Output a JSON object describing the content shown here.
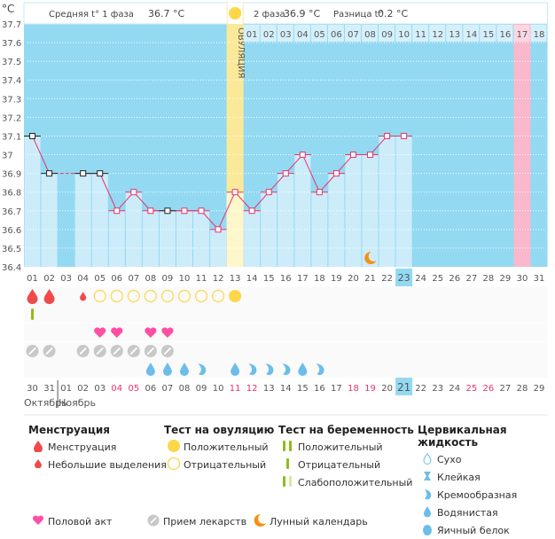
{
  "header": {
    "unit": "°C",
    "phase1_label": "Средняя t° 1 фаза",
    "phase1_value": "36.7 °C",
    "phase2_label": "2 фаза",
    "phase2_value": "36.9 °C",
    "diff_label": "Разница t°",
    "diff_value": "0.2 °C"
  },
  "colors": {
    "sky": "#93d9f2",
    "bar": "#cdecfa",
    "ovulation": "#fbe99a",
    "expected_period": "#f9b8cc",
    "line": "#e8336a",
    "menstruation": "#f04a4a",
    "ovulation_test": "#fcd74a",
    "pregnancy_test": "#8fbd1a",
    "heart": "#ff4fa3",
    "pill": "#c8c8c8",
    "fluid": "#6cbde9",
    "moon": "#f39215",
    "weekend": "#e8336a"
  },
  "chart_data": {
    "type": "line",
    "title": "",
    "ylabel": "°C",
    "ylim": [
      36.4,
      37.7
    ],
    "yticks": [
      37.7,
      37.6,
      37.5,
      37.4,
      37.3,
      37.2,
      37.1,
      37.0,
      36.9,
      36.8,
      36.7,
      36.6,
      36.5,
      36.4
    ],
    "ytick_labels": [
      "37.7",
      "37.6",
      "37.5",
      "37.4",
      "37.3",
      "37.2",
      "37.1",
      "37",
      "36.9",
      "36.8",
      "36.7",
      "36.6",
      "36.5",
      "36.4"
    ],
    "cycle_days": [
      "01",
      "02",
      "03",
      "04",
      "05",
      "06",
      "07",
      "08",
      "09",
      "10",
      "11",
      "12",
      "13",
      "14",
      "15",
      "16",
      "17",
      "18",
      "19",
      "20",
      "21",
      "22",
      "23",
      "24",
      "25",
      "26",
      "27",
      "28",
      "29",
      "30",
      "31"
    ],
    "temperatures": [
      37.1,
      36.9,
      null,
      36.9,
      36.9,
      36.7,
      36.8,
      36.7,
      36.7,
      36.7,
      36.7,
      36.6,
      36.8,
      36.7,
      36.8,
      36.9,
      37.0,
      36.8,
      36.9,
      37.0,
      37.0,
      37.1,
      37.1,
      null,
      null,
      null,
      null,
      null,
      null,
      null,
      null
    ],
    "point_style": [
      "black",
      "black",
      null,
      "black",
      "black",
      "pink",
      "pink",
      "pink",
      "black",
      "pink",
      "pink",
      "pink",
      "pink",
      "pink",
      "pink",
      "pink",
      "pink",
      "pink",
      "pink",
      "pink",
      "pink",
      "pink",
      "pink",
      null,
      null,
      null,
      null,
      null,
      null,
      null,
      null
    ],
    "ovulation_day_index": 12,
    "ovulation_label": "ОВУЛЯЦИЯ",
    "current_day_index": 22,
    "expected_period_day_index": 29,
    "post_ovulation_labels": [
      "01",
      "02",
      "03",
      "04",
      "05",
      "06",
      "07",
      "08",
      "09",
      "10",
      "11",
      "12",
      "13",
      "14",
      "15",
      "16",
      "17",
      "18"
    ],
    "post_ovulation_highlight_index": 16,
    "moon_day_index": 20,
    "calendar_dates": [
      "30",
      "31",
      "01",
      "02",
      "03",
      "04",
      "05",
      "06",
      "07",
      "08",
      "09",
      "10",
      "11",
      "12",
      "13",
      "14",
      "15",
      "16",
      "17",
      "18",
      "19",
      "20",
      "21",
      "22",
      "23",
      "24",
      "25",
      "26",
      "27",
      "28",
      "29"
    ],
    "weekend_dates": [
      5,
      6,
      12,
      13,
      19,
      20,
      26,
      27
    ],
    "today_date_index": 22,
    "months": [
      "Октябрь",
      "Ноябрь"
    ],
    "month_split_index": 2,
    "rows": {
      "menstruation": [
        "full",
        "full",
        null,
        "spotting",
        null,
        null,
        null,
        null,
        null,
        null,
        null,
        null,
        null,
        null,
        null,
        null,
        null,
        null,
        null,
        null,
        null,
        null,
        null,
        null,
        null,
        null,
        null,
        null,
        null,
        null,
        null
      ],
      "ovulation_test": [
        null,
        null,
        null,
        null,
        "negative",
        "negative",
        "negative",
        "negative",
        "negative",
        "negative",
        "negative",
        "negative",
        "positive",
        null,
        null,
        null,
        null,
        null,
        null,
        null,
        null,
        null,
        null,
        null,
        null,
        null,
        null,
        null,
        null,
        null,
        null
      ],
      "pregnancy_test": [
        "negative",
        null,
        null,
        null,
        null,
        null,
        null,
        null,
        null,
        null,
        null,
        null,
        null,
        null,
        null,
        null,
        null,
        null,
        null,
        null,
        null,
        null,
        null,
        null,
        null,
        null,
        null,
        null,
        null,
        null,
        null
      ],
      "intercourse": [
        null,
        null,
        null,
        null,
        true,
        true,
        null,
        true,
        true,
        null,
        null,
        null,
        null,
        null,
        null,
        null,
        null,
        null,
        null,
        null,
        null,
        null,
        null,
        null,
        null,
        null,
        null,
        null,
        null,
        null,
        null
      ],
      "medication": [
        true,
        true,
        null,
        true,
        true,
        true,
        true,
        true,
        true,
        null,
        null,
        null,
        null,
        null,
        null,
        null,
        null,
        null,
        null,
        null,
        null,
        null,
        null,
        null,
        null,
        null,
        null,
        null,
        null,
        null,
        null
      ],
      "cervical_fluid": [
        null,
        null,
        null,
        null,
        null,
        null,
        null,
        "watery",
        "watery",
        "watery",
        "creamy",
        null,
        "watery",
        "creamy",
        "creamy",
        "creamy",
        "watery",
        "creamy",
        null,
        null,
        null,
        null,
        null,
        null,
        null,
        null,
        null,
        null,
        null,
        null,
        null
      ]
    }
  },
  "legend": {
    "menstruation": {
      "title": "Менструация",
      "items": [
        "Менструация",
        "Небольшие выделения"
      ]
    },
    "ovulation_test": {
      "title": "Тест на овуляцию",
      "items": [
        "Положительный",
        "Отрицательный"
      ]
    },
    "pregnancy_test": {
      "title": "Тест на беременность",
      "items": [
        "Положительный",
        "Отрицательный",
        "Слабоположительный"
      ]
    },
    "cervical_fluid": {
      "title": "Цервикальная жидкость",
      "items": [
        "Сухо",
        "Клейкая",
        "Кремообразная",
        "Водянистая",
        "Яичный белок"
      ]
    },
    "other": [
      "Половой акт",
      "Прием лекарств",
      "Лунный календарь"
    ]
  }
}
